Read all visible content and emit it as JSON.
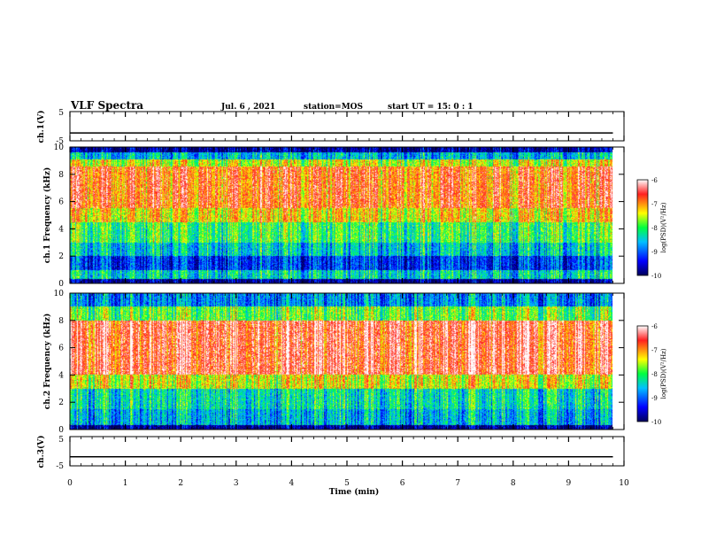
{
  "header": {
    "title": "VLF Spectra",
    "date": "Jul. 6 , 2021",
    "station": "station=MOS",
    "start_ut": "start UT = 15: 0 : 1"
  },
  "chart_data": [
    {
      "type": "line",
      "panel": "ch.1 voltage",
      "ylabel": "ch.1(V)",
      "ylim": [
        -5,
        5
      ],
      "yticks": [
        "5",
        "-5"
      ],
      "xlim": [
        0,
        10
      ],
      "series": [
        {
          "x": [
            0,
            9.8
          ],
          "values": [
            -2.3,
            -2.3
          ]
        }
      ]
    },
    {
      "type": "heatmap",
      "panel": "ch.1 spectrogram",
      "ylabel": "ch.1 Frequency (kHz)",
      "ylim": [
        0,
        10
      ],
      "yticks": [
        "0",
        "2",
        "4",
        "6",
        "8",
        "10"
      ],
      "xlim": [
        0,
        10
      ],
      "data_end_min": 9.8,
      "bands_kHz": [
        {
          "from": 0,
          "to": 0.3,
          "log_psd": -9.8
        },
        {
          "from": 0.3,
          "to": 1.0,
          "log_psd": -8.4
        },
        {
          "from": 1.0,
          "to": 2.0,
          "log_psd": -9.2
        },
        {
          "from": 2.0,
          "to": 3.0,
          "log_psd": -8.5
        },
        {
          "from": 3.0,
          "to": 4.5,
          "log_psd": -8.0
        },
        {
          "from": 4.5,
          "to": 5.5,
          "log_psd": -7.3
        },
        {
          "from": 5.5,
          "to": 8.6,
          "log_psd": -6.8
        },
        {
          "from": 8.6,
          "to": 9.1,
          "log_psd": -7.5
        },
        {
          "from": 9.1,
          "to": 9.6,
          "log_psd": -8.6
        },
        {
          "from": 9.6,
          "to": 10.0,
          "log_psd": -9.8
        }
      ],
      "colorbar": {
        "label": "log(PSD)(V²/Hz)",
        "range": [
          -10,
          -6
        ],
        "ticks": [
          "-6",
          "-7",
          "-8",
          "-9",
          "-10"
        ]
      }
    },
    {
      "type": "heatmap",
      "panel": "ch.2 spectrogram",
      "ylabel": "ch.2 Frequency (kHz)",
      "ylim": [
        0,
        10
      ],
      "yticks": [
        "0",
        "2",
        "4",
        "6",
        "8",
        "10"
      ],
      "xlim": [
        0,
        10
      ],
      "data_end_min": 9.8,
      "bands_kHz": [
        {
          "from": 0,
          "to": 0.3,
          "log_psd": -9.8
        },
        {
          "from": 0.3,
          "to": 1.5,
          "log_psd": -8.6
        },
        {
          "from": 1.5,
          "to": 3.0,
          "log_psd": -8.3
        },
        {
          "from": 3.0,
          "to": 4.0,
          "log_psd": -7.4
        },
        {
          "from": 4.0,
          "to": 8.0,
          "log_psd": -6.5
        },
        {
          "from": 8.0,
          "to": 9.0,
          "log_psd": -7.8
        },
        {
          "from": 9.0,
          "to": 10.0,
          "log_psd": -8.8
        }
      ],
      "colorbar": {
        "label": "log(PSD)(V²/Hz)",
        "range": [
          -10,
          -6
        ],
        "ticks": [
          "-6",
          "-7",
          "-8",
          "-9",
          "-10"
        ]
      }
    },
    {
      "type": "line",
      "panel": "ch.3 voltage",
      "ylabel": "ch.3(V)",
      "ylim": [
        -5,
        5
      ],
      "yticks": [
        "5",
        "-5"
      ],
      "xlim": [
        0,
        10
      ],
      "series": [
        {
          "x": [
            0,
            9.8
          ],
          "values": [
            -1.9,
            -1.9
          ]
        }
      ]
    }
  ],
  "x_axis": {
    "label": "Time (min)",
    "ticks": [
      "0",
      "1",
      "2",
      "3",
      "4",
      "5",
      "6",
      "7",
      "8",
      "9",
      "10"
    ]
  },
  "colors": {
    "colormap": [
      "#00005a",
      "#0000ff",
      "#00c0ff",
      "#00ff40",
      "#ffff00",
      "#ff2020",
      "#ffffff"
    ]
  }
}
